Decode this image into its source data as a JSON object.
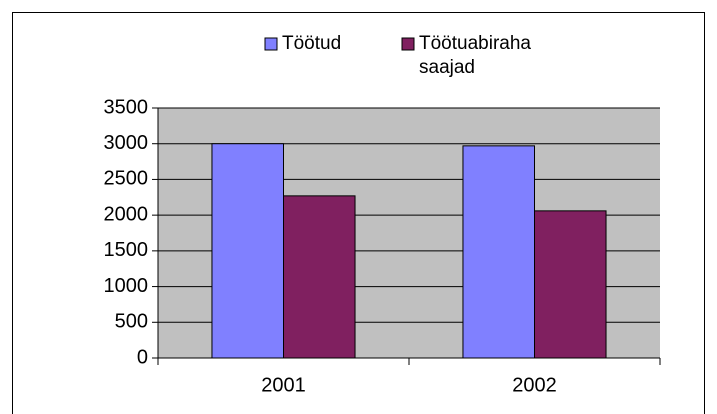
{
  "chart_data": {
    "type": "bar",
    "categories": [
      "2001",
      "2002"
    ],
    "series": [
      {
        "name": "Töötud",
        "color": "#8080ff",
        "values": [
          3000,
          2970
        ]
      },
      {
        "name": "Töötuabiraha saajad",
        "color": "#802060",
        "values": [
          2270,
          2060
        ]
      }
    ],
    "ylim": [
      0,
      3500
    ],
    "yticks": [
      0,
      500,
      1000,
      1500,
      2000,
      2500,
      3000,
      3500
    ],
    "grid": true,
    "legend": "top",
    "plot_background": "#c0c0c0"
  }
}
